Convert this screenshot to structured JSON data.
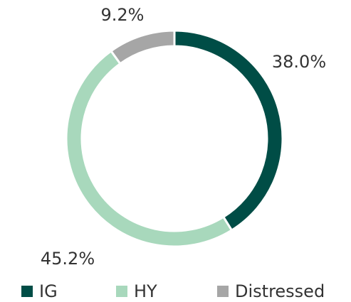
{
  "chart_data": {
    "type": "donut",
    "categories": [
      "IG",
      "HY",
      "Distressed"
    ],
    "values": [
      38.0,
      45.2,
      9.2
    ],
    "value_labels": [
      "38.0%",
      "45.2%",
      "9.2%"
    ],
    "colors": [
      "#004d46",
      "#a8d8bc",
      "#a6a6a6"
    ],
    "legend": "bottom"
  }
}
